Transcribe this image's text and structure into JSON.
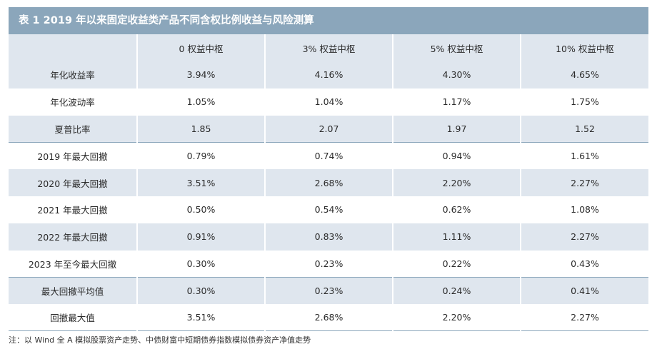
{
  "title": "表 1   2019 年以来固定收益类产品不同含权比例收益与风险测算",
  "table": {
    "headers": [
      "",
      "0 权益中枢",
      "3% 权益中枢",
      "5% 权益中枢",
      "10% 权益中枢"
    ],
    "rows": [
      [
        "年化收益率",
        "3.94%",
        "4.16%",
        "4.30%",
        "4.65%"
      ],
      [
        "年化波动率",
        "1.05%",
        "1.04%",
        "1.17%",
        "1.75%"
      ],
      [
        "夏普比率",
        "1.85",
        "2.07",
        "1.97",
        "1.52"
      ],
      [
        "2019 年最大回撤",
        "0.79%",
        "0.74%",
        "0.94%",
        "1.61%"
      ],
      [
        "2020 年最大回撤",
        "3.51%",
        "2.68%",
        "2.20%",
        "2.27%"
      ],
      [
        "2021 年最大回撤",
        "0.50%",
        "0.54%",
        "0.62%",
        "1.08%"
      ],
      [
        "2022 年最大回撤",
        "0.91%",
        "0.83%",
        "1.11%",
        "2.27%"
      ],
      [
        "2023 年至今最大回撤",
        "0.30%",
        "0.23%",
        "0.22%",
        "0.43%"
      ],
      [
        "最大回撤平均值",
        "0.30%",
        "0.23%",
        "0.24%",
        "0.41%"
      ],
      [
        "回撤最大值",
        "3.51%",
        "2.68%",
        "2.20%",
        "2.27%"
      ]
    ]
  },
  "note": "注：以 Wind 全 A 模拟股票资产走势、中债财富中短期债券指数模拟债券资产净值走势",
  "colors": {
    "title_bar": "#8ba6bb",
    "row_shade": "#dfe6ee",
    "rule": "#8ba6bb"
  }
}
